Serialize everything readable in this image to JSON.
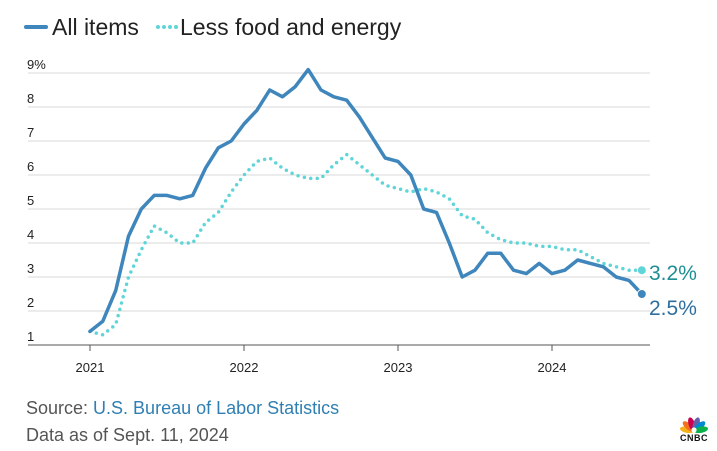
{
  "chart_data": {
    "type": "line",
    "title": "",
    "xlabel": "",
    "ylabel": "",
    "ylim": [
      1,
      9
    ],
    "y_ticks": [
      "9%",
      "8",
      "7",
      "6",
      "5",
      "4",
      "3",
      "2",
      "1"
    ],
    "x_ticks": [
      "2021",
      "2022",
      "2023",
      "2024"
    ],
    "grid": true,
    "legend_position": "top-left",
    "series": [
      {
        "name": "All items",
        "style": "solid",
        "color": "#3f86bc",
        "end_label": "2.5%",
        "points": [
          [
            "2021-01",
            1.4
          ],
          [
            "2021-02",
            1.7
          ],
          [
            "2021-03",
            2.6
          ],
          [
            "2021-04",
            4.2
          ],
          [
            "2021-05",
            5.0
          ],
          [
            "2021-06",
            5.4
          ],
          [
            "2021-07",
            5.4
          ],
          [
            "2021-08",
            5.3
          ],
          [
            "2021-09",
            5.4
          ],
          [
            "2021-10",
            6.2
          ],
          [
            "2021-11",
            6.8
          ],
          [
            "2021-12",
            7.0
          ],
          [
            "2022-01",
            7.5
          ],
          [
            "2022-02",
            7.9
          ],
          [
            "2022-03",
            8.5
          ],
          [
            "2022-04",
            8.3
          ],
          [
            "2022-05",
            8.6
          ],
          [
            "2022-06",
            9.1
          ],
          [
            "2022-07",
            8.5
          ],
          [
            "2022-08",
            8.3
          ],
          [
            "2022-09",
            8.2
          ],
          [
            "2022-10",
            7.7
          ],
          [
            "2022-11",
            7.1
          ],
          [
            "2022-12",
            6.5
          ],
          [
            "2023-01",
            6.4
          ],
          [
            "2023-02",
            6.0
          ],
          [
            "2023-03",
            5.0
          ],
          [
            "2023-04",
            4.9
          ],
          [
            "2023-05",
            4.0
          ],
          [
            "2023-06",
            3.0
          ],
          [
            "2023-07",
            3.2
          ],
          [
            "2023-08",
            3.7
          ],
          [
            "2023-09",
            3.7
          ],
          [
            "2023-10",
            3.2
          ],
          [
            "2023-11",
            3.1
          ],
          [
            "2023-12",
            3.4
          ],
          [
            "2024-01",
            3.1
          ],
          [
            "2024-02",
            3.2
          ],
          [
            "2024-03",
            3.5
          ],
          [
            "2024-04",
            3.4
          ],
          [
            "2024-05",
            3.3
          ],
          [
            "2024-06",
            3.0
          ],
          [
            "2024-07",
            2.9
          ],
          [
            "2024-08",
            2.5
          ]
        ]
      },
      {
        "name": "Less food and energy",
        "style": "dotted",
        "color": "#5fd5d8",
        "end_label": "3.2%",
        "points": [
          [
            "2021-01",
            1.4
          ],
          [
            "2021-02",
            1.3
          ],
          [
            "2021-03",
            1.6
          ],
          [
            "2021-04",
            3.0
          ],
          [
            "2021-05",
            3.8
          ],
          [
            "2021-06",
            4.5
          ],
          [
            "2021-07",
            4.3
          ],
          [
            "2021-08",
            4.0
          ],
          [
            "2021-09",
            4.0
          ],
          [
            "2021-10",
            4.6
          ],
          [
            "2021-11",
            4.9
          ],
          [
            "2021-12",
            5.5
          ],
          [
            "2022-01",
            6.0
          ],
          [
            "2022-02",
            6.4
          ],
          [
            "2022-03",
            6.5
          ],
          [
            "2022-04",
            6.2
          ],
          [
            "2022-05",
            6.0
          ],
          [
            "2022-06",
            5.9
          ],
          [
            "2022-07",
            5.9
          ],
          [
            "2022-08",
            6.3
          ],
          [
            "2022-09",
            6.6
          ],
          [
            "2022-10",
            6.3
          ],
          [
            "2022-11",
            6.0
          ],
          [
            "2022-12",
            5.7
          ],
          [
            "2023-01",
            5.6
          ],
          [
            "2023-02",
            5.5
          ],
          [
            "2023-03",
            5.6
          ],
          [
            "2023-04",
            5.5
          ],
          [
            "2023-05",
            5.3
          ],
          [
            "2023-06",
            4.8
          ],
          [
            "2023-07",
            4.7
          ],
          [
            "2023-08",
            4.3
          ],
          [
            "2023-09",
            4.1
          ],
          [
            "2023-10",
            4.0
          ],
          [
            "2023-11",
            4.0
          ],
          [
            "2023-12",
            3.9
          ],
          [
            "2024-01",
            3.9
          ],
          [
            "2024-02",
            3.8
          ],
          [
            "2024-03",
            3.8
          ],
          [
            "2024-04",
            3.6
          ],
          [
            "2024-05",
            3.4
          ],
          [
            "2024-06",
            3.3
          ],
          [
            "2024-07",
            3.2
          ],
          [
            "2024-08",
            3.2
          ]
        ]
      }
    ]
  },
  "footer": {
    "source_prefix": "Source: ",
    "source_name": "U.S. Bureau of Labor Statistics",
    "data_as_of": "Data as of Sept. 11, 2024"
  },
  "logo": {
    "name": "cnbc-peacock-logo",
    "text": "CNBC",
    "colors": [
      "#f6b21b",
      "#f37021",
      "#cc004c",
      "#6460aa",
      "#0089d0",
      "#0db14b"
    ]
  }
}
